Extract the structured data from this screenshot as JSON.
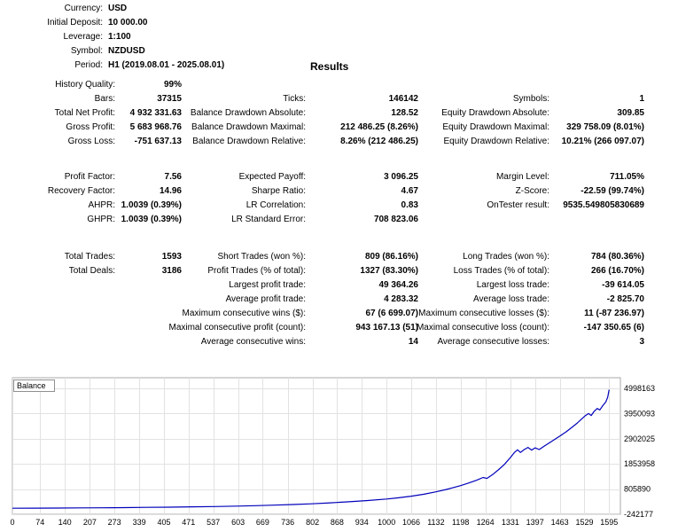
{
  "report": {
    "header": {
      "rows": [
        {
          "label": "Currency:",
          "value": "USD"
        },
        {
          "label": "Initial Deposit:",
          "value": "10 000.00"
        },
        {
          "label": "Leverage:",
          "value": "1:100"
        },
        {
          "label": "Symbol:",
          "value": "NZDUSD"
        },
        {
          "label": "Period:",
          "value": "H1 (2019.08.01 - 2025.08.01)"
        }
      ],
      "results_title": "Results"
    },
    "sections": [
      {
        "rows": [
          [
            "History Quality:",
            "99%",
            "",
            "",
            "",
            ""
          ],
          [
            "Bars:",
            "37315",
            "Ticks:",
            "146142",
            "Symbols:",
            "1"
          ],
          [
            "Total Net Profit:",
            "4 932 331.63",
            "Balance Drawdown Absolute:",
            "128.52",
            "Equity Drawdown Absolute:",
            "309.85"
          ],
          [
            "Gross Profit:",
            "5 683 968.76",
            "Balance Drawdown Maximal:",
            "212 486.25 (8.26%)",
            "Equity Drawdown Maximal:",
            "329 758.09 (8.01%)"
          ],
          [
            "Gross Loss:",
            "-751 637.13",
            "Balance Drawdown Relative:",
            "8.26% (212 486.25)",
            "Equity Drawdown Relative:",
            "10.21% (266 097.07)"
          ]
        ]
      },
      {
        "rows": [
          [
            "Profit Factor:",
            "7.56",
            "Expected Payoff:",
            "3 096.25",
            "Margin Level:",
            "711.05%"
          ],
          [
            "Recovery Factor:",
            "14.96",
            "Sharpe Ratio:",
            "4.67",
            "Z-Score:",
            "-22.59 (99.74%)"
          ],
          [
            "AHPR:",
            "1.0039 (0.39%)",
            "LR Correlation:",
            "0.83",
            "OnTester result:",
            "9535.549805830689"
          ],
          [
            "GHPR:",
            "1.0039 (0.39%)",
            "LR Standard Error:",
            "708 823.06",
            "",
            ""
          ]
        ]
      },
      {
        "rows": [
          [
            "Total Trades:",
            "1593",
            "Short Trades (won %):",
            "809 (86.16%)",
            "Long Trades (won %):",
            "784 (80.36%)"
          ],
          [
            "Total Deals:",
            "3186",
            "Profit Trades (% of total):",
            "1327 (83.30%)",
            "Loss Trades (% of total):",
            "266 (16.70%)"
          ],
          [
            "",
            "",
            "Largest profit trade:",
            "49 364.26",
            "Largest loss trade:",
            "-39 614.05"
          ],
          [
            "",
            "",
            "Average profit trade:",
            "4 283.32",
            "Average loss trade:",
            "-2 825.70"
          ],
          [
            "",
            "",
            "Maximum consecutive wins ($):",
            "67 (6 699.07)",
            "Maximum consecutive losses ($):",
            "11 (-87 236.97)"
          ],
          [
            "",
            "",
            "Maximal consecutive profit (count):",
            "943 167.13 (51)",
            "Maximal consecutive loss (count):",
            "-147 350.65 (6)"
          ],
          [
            "",
            "",
            "Average consecutive wins:",
            "14",
            "Average consecutive losses:",
            "3"
          ]
        ]
      }
    ]
  },
  "chart_data": {
    "type": "line",
    "title": "Balance",
    "legend": [
      "Balance"
    ],
    "legend_position": "top-left",
    "grid": true,
    "line_color": "#0000bb",
    "grid_color": "#e2e2e2",
    "border_color": "#a8a8a8",
    "xlabel": "",
    "ylabel": "",
    "x_range": [
      0,
      1625
    ],
    "y_range": [
      -242177,
      5440000
    ],
    "x_axis_ticks": [
      0,
      74,
      140,
      207,
      273,
      339,
      405,
      471,
      537,
      603,
      669,
      736,
      802,
      868,
      934,
      1000,
      1066,
      1132,
      1198,
      1264,
      1331,
      1397,
      1463,
      1529,
      1595
    ],
    "y_axis_ticks": [
      4998163,
      3950093,
      2902025,
      1853958,
      805890,
      -242177
    ],
    "series": [
      {
        "name": "Balance",
        "points": [
          [
            0,
            10000
          ],
          [
            60,
            13000
          ],
          [
            120,
            17000
          ],
          [
            180,
            22000
          ],
          [
            240,
            28000
          ],
          [
            300,
            35000
          ],
          [
            360,
            44000
          ],
          [
            420,
            54000
          ],
          [
            480,
            66000
          ],
          [
            540,
            80000
          ],
          [
            600,
            97000
          ],
          [
            650,
            115000
          ],
          [
            700,
            138000
          ],
          [
            750,
            163000
          ],
          [
            800,
            195000
          ],
          [
            850,
            232000
          ],
          [
            900,
            278000
          ],
          [
            950,
            330000
          ],
          [
            1000,
            392000
          ],
          [
            1030,
            440000
          ],
          [
            1066,
            510000
          ],
          [
            1100,
            590000
          ],
          [
            1132,
            690000
          ],
          [
            1160,
            790000
          ],
          [
            1198,
            950000
          ],
          [
            1220,
            1060000
          ],
          [
            1240,
            1170000
          ],
          [
            1258,
            1290000
          ],
          [
            1268,
            1250000
          ],
          [
            1285,
            1430000
          ],
          [
            1300,
            1620000
          ],
          [
            1315,
            1830000
          ],
          [
            1331,
            2120000
          ],
          [
            1342,
            2330000
          ],
          [
            1350,
            2440000
          ],
          [
            1358,
            2330000
          ],
          [
            1368,
            2450000
          ],
          [
            1378,
            2540000
          ],
          [
            1388,
            2430000
          ],
          [
            1397,
            2520000
          ],
          [
            1408,
            2450000
          ],
          [
            1422,
            2600000
          ],
          [
            1440,
            2780000
          ],
          [
            1463,
            3010000
          ],
          [
            1480,
            3190000
          ],
          [
            1495,
            3370000
          ],
          [
            1510,
            3560000
          ],
          [
            1522,
            3730000
          ],
          [
            1532,
            3870000
          ],
          [
            1540,
            3950000
          ],
          [
            1547,
            3870000
          ],
          [
            1555,
            4040000
          ],
          [
            1563,
            4160000
          ],
          [
            1570,
            4100000
          ],
          [
            1578,
            4280000
          ],
          [
            1586,
            4430000
          ],
          [
            1591,
            4620000
          ],
          [
            1595,
            4942331
          ]
        ]
      }
    ]
  }
}
